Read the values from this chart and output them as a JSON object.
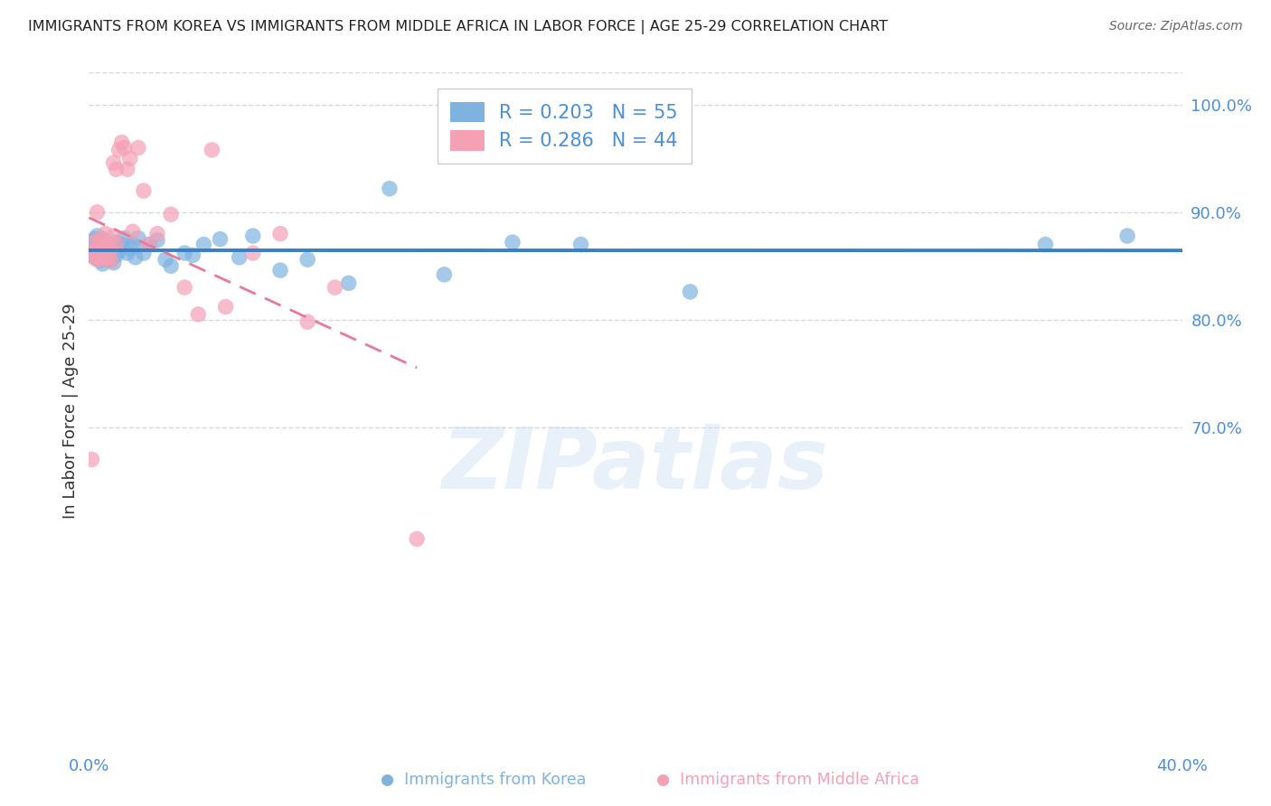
{
  "title": "IMMIGRANTS FROM KOREA VS IMMIGRANTS FROM MIDDLE AFRICA IN LABOR FORCE | AGE 25-29 CORRELATION CHART",
  "source": "Source: ZipAtlas.com",
  "ylabel": "In Labor Force | Age 25-29",
  "xlim": [
    0.0,
    0.4
  ],
  "ylim": [
    0.4,
    1.03
  ],
  "yticks": [
    0.7,
    0.8,
    0.9,
    1.0
  ],
  "ytick_labels": [
    "70.0%",
    "80.0%",
    "90.0%",
    "100.0%"
  ],
  "xticks": [
    0.0,
    0.05,
    0.1,
    0.15,
    0.2,
    0.25,
    0.3,
    0.35,
    0.4
  ],
  "xtick_labels": [
    "0.0%",
    "",
    "",
    "",
    "",
    "",
    "",
    "",
    "40.0%"
  ],
  "korea_color": "#7eb3e0",
  "africa_color": "#f4a0b5",
  "line_korea_color": "#3a7fc1",
  "line_africa_color": "#e8799a",
  "korea_R": 0.203,
  "korea_N": 55,
  "africa_R": 0.286,
  "africa_N": 44,
  "watermark": "ZIPatlas",
  "korea_scatter_x": [
    0.001,
    0.001,
    0.002,
    0.002,
    0.002,
    0.003,
    0.003,
    0.003,
    0.003,
    0.004,
    0.004,
    0.004,
    0.005,
    0.005,
    0.005,
    0.006,
    0.006,
    0.006,
    0.007,
    0.007,
    0.008,
    0.008,
    0.009,
    0.009,
    0.01,
    0.01,
    0.011,
    0.012,
    0.013,
    0.014,
    0.015,
    0.016,
    0.017,
    0.018,
    0.02,
    0.022,
    0.025,
    0.028,
    0.03,
    0.035,
    0.038,
    0.042,
    0.048,
    0.055,
    0.06,
    0.07,
    0.08,
    0.095,
    0.11,
    0.13,
    0.155,
    0.18,
    0.22,
    0.35,
    0.38
  ],
  "korea_scatter_y": [
    0.862,
    0.868,
    0.858,
    0.87,
    0.875,
    0.858,
    0.865,
    0.872,
    0.878,
    0.855,
    0.865,
    0.872,
    0.852,
    0.862,
    0.875,
    0.856,
    0.864,
    0.87,
    0.858,
    0.87,
    0.856,
    0.866,
    0.853,
    0.868,
    0.86,
    0.872,
    0.864,
    0.87,
    0.876,
    0.862,
    0.866,
    0.87,
    0.858,
    0.876,
    0.862,
    0.87,
    0.874,
    0.856,
    0.85,
    0.862,
    0.86,
    0.87,
    0.875,
    0.858,
    0.878,
    0.846,
    0.856,
    0.834,
    0.922,
    0.842,
    0.872,
    0.87,
    0.826,
    0.87,
    0.878
  ],
  "africa_scatter_x": [
    0.001,
    0.001,
    0.002,
    0.002,
    0.003,
    0.003,
    0.003,
    0.004,
    0.004,
    0.004,
    0.005,
    0.005,
    0.005,
    0.006,
    0.006,
    0.006,
    0.007,
    0.007,
    0.008,
    0.008,
    0.009,
    0.009,
    0.01,
    0.01,
    0.011,
    0.012,
    0.013,
    0.014,
    0.015,
    0.016,
    0.018,
    0.02,
    0.022,
    0.025,
    0.03,
    0.035,
    0.04,
    0.045,
    0.05,
    0.06,
    0.07,
    0.08,
    0.09,
    0.12
  ],
  "africa_scatter_y": [
    0.862,
    0.67,
    0.858,
    0.872,
    0.856,
    0.865,
    0.9,
    0.858,
    0.865,
    0.875,
    0.856,
    0.864,
    0.87,
    0.858,
    0.868,
    0.88,
    0.858,
    0.87,
    0.855,
    0.865,
    0.946,
    0.878,
    0.94,
    0.87,
    0.958,
    0.965,
    0.96,
    0.94,
    0.95,
    0.882,
    0.96,
    0.92,
    0.87,
    0.88,
    0.898,
    0.83,
    0.805,
    0.958,
    0.812,
    0.862,
    0.88,
    0.798,
    0.83,
    0.596
  ],
  "background_color": "#ffffff",
  "grid_color": "#d8d8d8",
  "tick_color": "#4a90d9"
}
